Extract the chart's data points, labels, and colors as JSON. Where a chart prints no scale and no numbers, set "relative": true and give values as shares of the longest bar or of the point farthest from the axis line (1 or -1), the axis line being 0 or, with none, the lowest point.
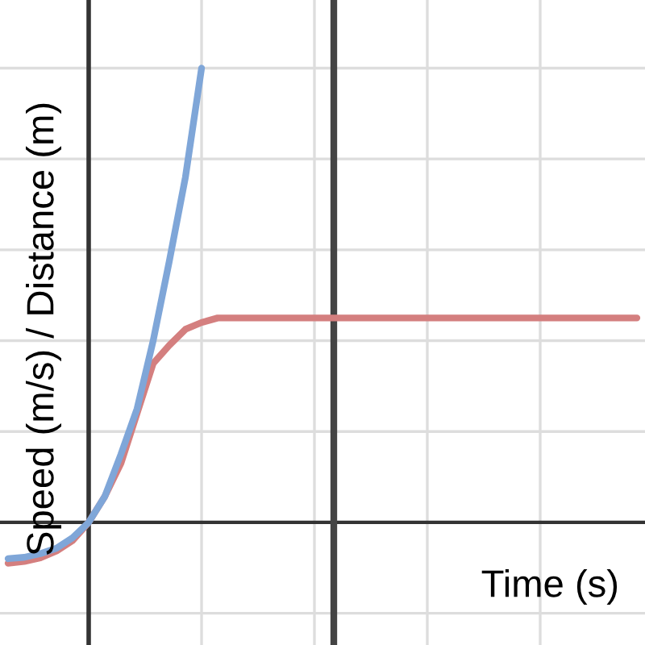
{
  "chart_data": {
    "type": "line",
    "relative": true,
    "xlabel": "Time (s)",
    "ylabel": "Speed (m/s) / Distance (m)",
    "categories": [
      null,
      null,
      null,
      null,
      null,
      null,
      null,
      null,
      null,
      null,
      null,
      null,
      null,
      null,
      null,
      null,
      null,
      null,
      null,
      null,
      null,
      null,
      null,
      null,
      null,
      null,
      null,
      null,
      null,
      null,
      null,
      null,
      null,
      null,
      null,
      null,
      null,
      null,
      null,
      null
    ],
    "series": [
      {
        "color": "#d47f7f",
        "values": [
          -0.09,
          -0.086,
          -0.078,
          -0.063,
          -0.04,
          0,
          0.057,
          0.13,
          0.24,
          0.35,
          0.39,
          0.425,
          0.44,
          0.45,
          0.45,
          0.45,
          0.45,
          0.45,
          0.45,
          0.45,
          0.45,
          0.45,
          0.45,
          0.45,
          0.45,
          0.45,
          0.45,
          0.45,
          0.45,
          0.45,
          0.45,
          0.45,
          0.45,
          0.45,
          0.45,
          0.45,
          0.45,
          0.45,
          0.45,
          0.45
        ]
      },
      {
        "color": "#7fa6d8",
        "values": [
          -0.08,
          -0.077,
          -0.069,
          -0.057,
          -0.034,
          0,
          0.057,
          0.15,
          0.25,
          0.4,
          0.575,
          0.76,
          1,
          null,
          null,
          null,
          null,
          null,
          null,
          null,
          null,
          null,
          null,
          null,
          null,
          null,
          null,
          null,
          null,
          null,
          null,
          null,
          null,
          null,
          null,
          null,
          null,
          null,
          null,
          null
        ]
      }
    ],
    "grid": true,
    "legend": false,
    "line_style": "solid",
    "marker": "none"
  }
}
